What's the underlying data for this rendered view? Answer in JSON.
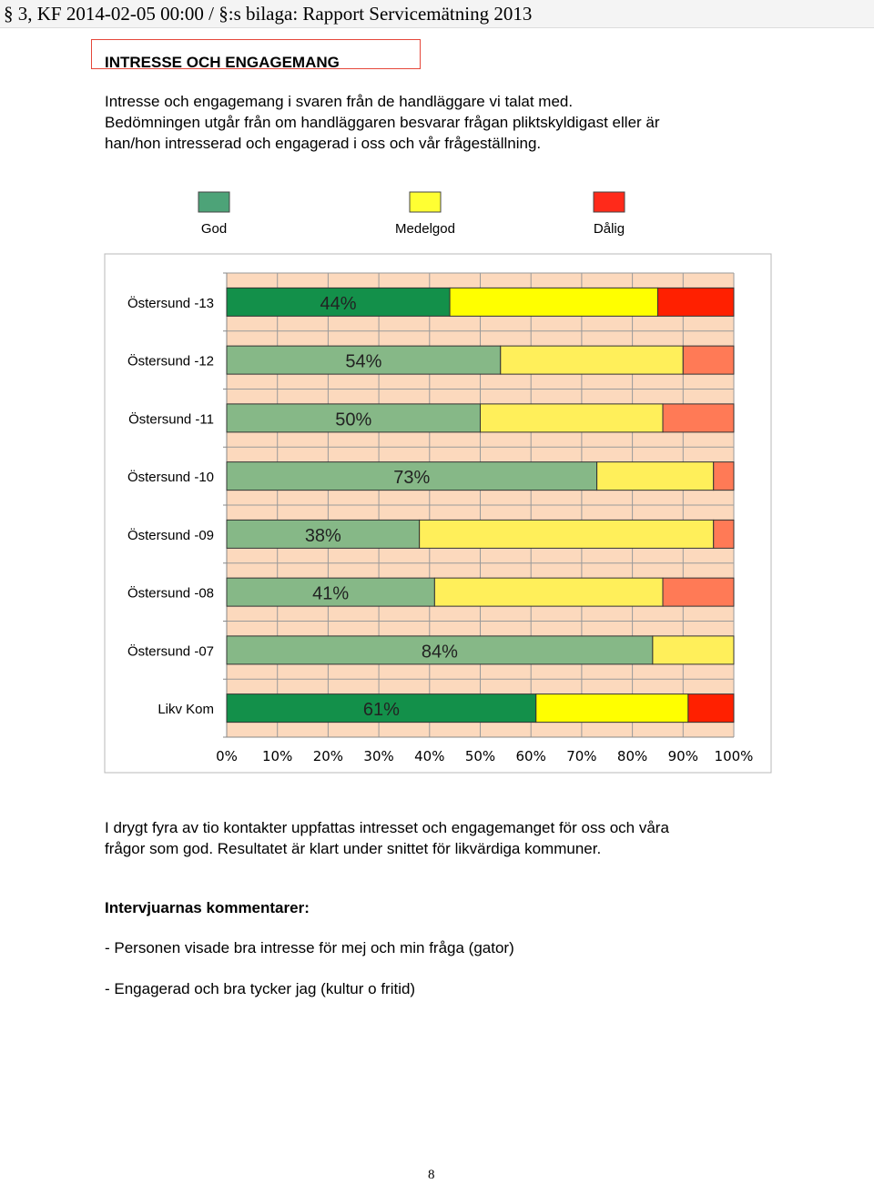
{
  "header": {
    "text": "§ 3, KF 2014-02-05 00:00 / §:s bilaga: Rapport Servicemätning 2013"
  },
  "section": {
    "heading": "INTRESSE OCH ENGAGEMANG",
    "intro_lines": [
      "Intresse och engagemang i svaren från de handläggare vi talat med.",
      "Bedömningen utgår från om handläggaren besvarar frågan pliktskyldigast eller är",
      "han/hon intresserad och engagerad i oss och vår frågeställning."
    ],
    "summary_lines": [
      "I drygt fyra av tio kontakter uppfattas intresset och engagemanget för oss och våra",
      "frågor som god. Resultatet är klart under snittet för likvärdiga kommuner."
    ],
    "comments_title": "Intervjuarnas kommentarer:",
    "comments": [
      "- Personen visade bra intresse för mej och min fråga (gator)",
      "- Engagerad och bra tycker jag (kultur o fritid)"
    ],
    "page_number": "8"
  },
  "chart_data": {
    "type": "bar",
    "orientation": "horizontal",
    "stacked": true,
    "categories": [
      "Östersund -13",
      "Östersund -12",
      "Östersund -11",
      "Östersund -10",
      "Östersund -09",
      "Östersund -08",
      "Östersund -07",
      "Likv Kom"
    ],
    "series": [
      {
        "name": "God",
        "values": [
          44,
          54,
          50,
          73,
          38,
          41,
          84,
          61
        ],
        "color": "#4da378"
      },
      {
        "name": "Medelgod",
        "values": [
          41,
          36,
          36,
          23,
          58,
          45,
          16,
          30
        ],
        "color": "#ffff33"
      },
      {
        "name": "Dålig",
        "values": [
          15,
          10,
          14,
          4,
          4,
          14,
          0,
          9
        ],
        "color": "#ff3b1f"
      }
    ],
    "data_labels": [
      "44%",
      "54%",
      "50%",
      "73%",
      "38%",
      "41%",
      "84%",
      "61%"
    ],
    "highlighted_categories": [
      "Östersund -13",
      "Likv Kom"
    ],
    "muted_colors": {
      "God": "#86b887",
      "Medelgod": "#ffef5a",
      "Dålig": "#ff7a56"
    },
    "highlight_colors": {
      "God": "#13904a",
      "Medelgod": "#ffff00",
      "Dålig": "#ff2000"
    },
    "plot_background": "#fcd9bd",
    "x_ticks": [
      "0%",
      "10%",
      "20%",
      "30%",
      "40%",
      "50%",
      "60%",
      "70%",
      "80%",
      "90%",
      "100%"
    ],
    "xlim": [
      0,
      100
    ],
    "grid": true,
    "legend": {
      "position": "top",
      "entries": [
        "God",
        "Medelgod",
        "Dålig"
      ]
    }
  }
}
